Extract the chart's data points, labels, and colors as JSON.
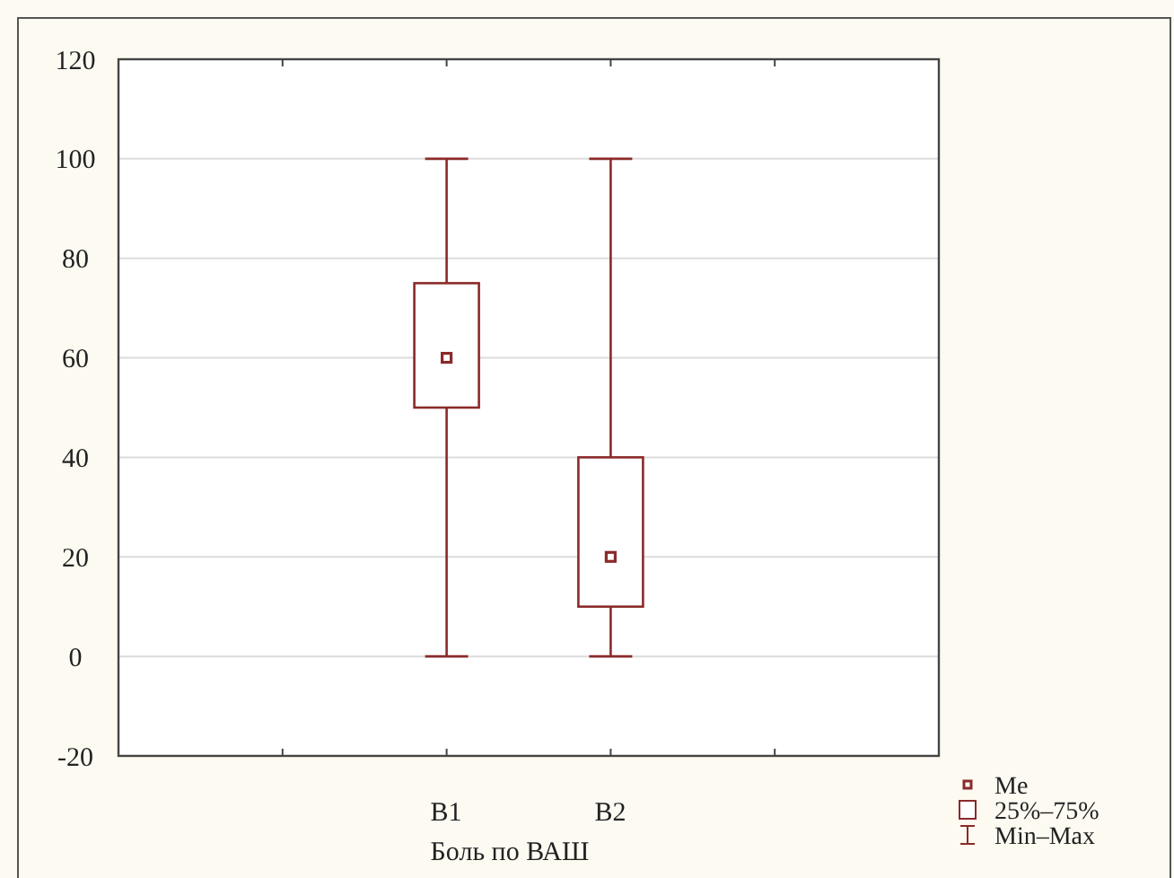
{
  "chart_data": {
    "type": "box",
    "xlabel": "Боль по ВАШ",
    "categories": [
      "B1",
      "B2"
    ],
    "color": "#8b2a2a",
    "boxes": [
      {
        "low": 0,
        "q1": 50,
        "median": 60,
        "q3": 75,
        "high": 100
      },
      {
        "low": 0,
        "q1": 10,
        "median": 20,
        "q3": 40,
        "high": 100
      }
    ],
    "ylim": [
      -20,
      120
    ],
    "yticks": [
      -20,
      0,
      20,
      40,
      60,
      80,
      100,
      120
    ],
    "grid": "y",
    "annotations": [
      "Me",
      "25%–75%",
      "Min–Max"
    ]
  }
}
